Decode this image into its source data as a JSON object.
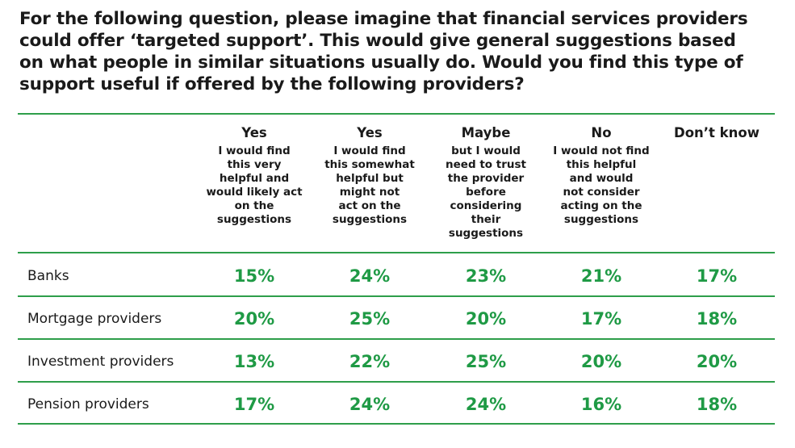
{
  "title_lines": [
    "For the following question, please imagine that financial services providers",
    "could offer ‘targeted support’. This would give general suggestions based",
    "on what people in similar situations usually do. Would you find this type of",
    "support useful if offered by the following providers?"
  ],
  "colors": {
    "accent": "#2e9e4a",
    "value_text": "#1f9a45",
    "text": "#1a1a1a"
  },
  "chart_data": {
    "type": "table",
    "title": "For the following question, please imagine that financial services providers could offer ‘targeted support’. This would give general suggestions based on what people in similar situations usually do. Would you find this type of support useful if offered by the following providers?",
    "columns": [
      {
        "heading": "Yes",
        "description_lines": [
          "I would find",
          "this very",
          "helpful and",
          "would likely act",
          "on the",
          "suggestions"
        ]
      },
      {
        "heading": "Yes",
        "description_lines": [
          "I would find",
          "this somewhat",
          "helpful but",
          "might not",
          "act on the",
          "suggestions"
        ]
      },
      {
        "heading": "Maybe",
        "description_lines": [
          "but I would",
          "need to trust",
          "the provider",
          "before",
          "considering",
          "their",
          "suggestions"
        ]
      },
      {
        "heading": "No",
        "description_lines": [
          "I would not find",
          "this helpful",
          "and would",
          "not consider",
          "acting on the",
          "suggestions"
        ]
      },
      {
        "heading": "Don’t know",
        "description_lines": []
      }
    ],
    "rows": [
      {
        "label": "Banks",
        "values": [
          "15%",
          "24%",
          "23%",
          "21%",
          "17%"
        ]
      },
      {
        "label": "Mortgage providers",
        "values": [
          "20%",
          "25%",
          "20%",
          "17%",
          "18%"
        ]
      },
      {
        "label": "Investment providers",
        "values": [
          "13%",
          "22%",
          "25%",
          "20%",
          "20%"
        ]
      },
      {
        "label": "Pension providers",
        "values": [
          "17%",
          "24%",
          "24%",
          "16%",
          "18%"
        ]
      }
    ]
  }
}
